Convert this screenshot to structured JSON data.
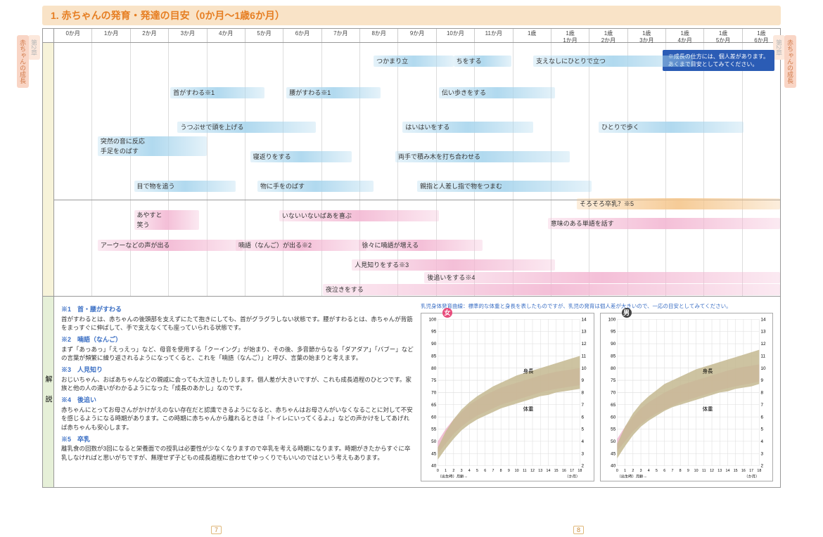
{
  "title": "1. 赤ちゃんの発育・発達の目安（0か月～1歳6か月）",
  "side_tabs": {
    "l": "赤ちゃんの成長",
    "l2": "第2章",
    "r": "赤ちゃんの成長",
    "r2": "第2章"
  },
  "axis": [
    "0か月",
    "1か月",
    "2か月",
    "3か月",
    "4か月",
    "5か月",
    "6か月",
    "7か月",
    "8か月",
    "9か月",
    "10か月",
    "11か月",
    "1歳",
    "1歳\n1か月",
    "1歳\n2か月",
    "1歳\n3か月",
    "1歳\n4か月",
    "1歳\n5か月",
    "1歳\n6か月"
  ],
  "note": "※成長の仕方には、個人差があります。\nあくまで目安としてみてください。",
  "bars": [
    {
      "t": "つかまり立",
      "c": "blue",
      "x": 44,
      "w": 11,
      "y": 5
    },
    {
      "t": "ちをする",
      "c": "blue",
      "x": 55,
      "w": 8,
      "y": 5
    },
    {
      "t": "支えなしにひとりで立つ",
      "c": "blue",
      "x": 66,
      "w": 22,
      "y": 5
    },
    {
      "t": "首がすわる※1",
      "c": "blue",
      "x": 16,
      "w": 13,
      "y": 18
    },
    {
      "t": "腰がすわる※1",
      "c": "blue",
      "x": 32,
      "w": 13,
      "y": 18
    },
    {
      "t": "伝い歩きをする",
      "c": "blue",
      "x": 53,
      "w": 16,
      "y": 18
    },
    {
      "t": "うつぶせで頭を上げる",
      "c": "blue",
      "x": 17,
      "w": 19,
      "y": 32
    },
    {
      "t": "はいはいをする",
      "c": "blue",
      "x": 48,
      "w": 18,
      "y": 32
    },
    {
      "t": "ひとりで歩く",
      "c": "blue",
      "x": 75,
      "w": 20,
      "y": 32
    },
    {
      "t": "突然の音に反応\n手足をのばす",
      "c": "blue",
      "x": 6,
      "w": 15,
      "y": 38,
      "h": 28
    },
    {
      "t": "寝返りをする",
      "c": "blue",
      "x": 27,
      "w": 14,
      "y": 44
    },
    {
      "t": "両手で積み木を打ち合わせる",
      "c": "blue",
      "x": 47,
      "w": 24,
      "y": 44
    },
    {
      "t": "目で物を追う",
      "c": "blue",
      "x": 11,
      "w": 14,
      "y": 56
    },
    {
      "t": "物に手をのばす",
      "c": "blue",
      "x": 28,
      "w": 16,
      "y": 56
    },
    {
      "t": "親指と人差し指で物をつまむ",
      "c": "blue",
      "x": 50,
      "w": 24,
      "y": 56
    },
    {
      "t": "そろそろ卒乳？※5",
      "c": "orange",
      "x": 72,
      "w": 28,
      "y": 63
    },
    {
      "t": "あやすと\n笑う",
      "c": "pink",
      "x": 11,
      "w": 9,
      "y": 68,
      "h": 28
    },
    {
      "t": "いないいないばあを喜ぶ",
      "c": "pink",
      "x": 31,
      "w": 22,
      "y": 68
    },
    {
      "t": "意味のある単語を話す",
      "c": "pink",
      "x": 68,
      "w": 32,
      "y": 71
    },
    {
      "t": "アーウーなどの声が出る",
      "c": "pink",
      "x": 6,
      "w": 20,
      "y": 80
    },
    {
      "t": "喃語（なんご）が出る※2",
      "c": "pink",
      "x": 25,
      "w": 18,
      "y": 80
    },
    {
      "t": "徐々に喃語が増える",
      "c": "pink",
      "x": 42,
      "w": 17,
      "y": 80
    },
    {
      "t": "人見知りをする※3",
      "c": "pink",
      "x": 41,
      "w": 28,
      "y": 88
    },
    {
      "t": "後追いをする※4",
      "c": "pink",
      "x": 51,
      "w": 49,
      "y": 93
    },
    {
      "t": "夜泣きをする",
      "c": "pink",
      "x": 37,
      "w": 63,
      "y": 98
    }
  ],
  "explain_label": "解 説",
  "explain": [
    {
      "h": "※1　首・腰がすわる",
      "p": "首がすわるとは、赤ちゃんの後頭部を支えずにたて抱きにしても、首がグラグラしない状態です。腰がすわるとは、赤ちゃんが背筋をまっすぐに伸ばして、手で支えなくても座っていられる状態です。"
    },
    {
      "h": "※2　喃語（なんご）",
      "p": "まず「あっあっ」「えっえっ」など、母音を使用する「クーイング」が始まり、その後、多音節からなる「ダアダア」「バブー」などの言葉が頻繁に繰り返されるようになってくると、これを「喃語（なんご）」と呼び、言葉の始まりと考えます。"
    },
    {
      "h": "※3　人見知り",
      "p": "おじいちゃん、おばあちゃんなどの親戚に会っても大泣きしたりします。個人差が大きいですが、これも成長過程のひとつです。家族と他の人の違いがわかるようになった「成長のあかし」なのです。"
    },
    {
      "h": "※4　後追い",
      "p": "赤ちゃんにとってお母さんがかけがえのない存在だと認識できるようになると、赤ちゃんはお母さんがいなくなることに対して不安を感じるようになる時期があります。この時期に赤ちゃんから離れるときは「トイレにいってくるよ。」などの声かけをしてあげれば赤ちゃんも安心します。"
    },
    {
      "h": "※5　卒乳",
      "p": "離乳食の回数が3回になると栄養面での授乳は必要性が少なくなりますので卒乳を考える時期になります。時期がきたからすぐに卒乳しなければと思いがちですが、無理せず子どもの成長過程に合わせてゆっくりでもいいのではという考えもあります。"
    }
  ],
  "chart_head": "乳児身体発育曲線：標準的な体重と身長を表したものですが、乳児の発育は個人差が大きいので、一応の目安としてみてください。",
  "charts": [
    {
      "badge": "女",
      "badge_color": "#e84a7a",
      "height_label": "身長",
      "weight_label": "体重",
      "height_upper": [
        50,
        55,
        59,
        62,
        65,
        67,
        69,
        70.5,
        72,
        73,
        74,
        75,
        76,
        77,
        77.8,
        78.5,
        79,
        79.5,
        80
      ],
      "height_lower": [
        45,
        49,
        53,
        56,
        58.5,
        60.5,
        62,
        63.5,
        65,
        66,
        67,
        68,
        69,
        70,
        70.8,
        71.5,
        72,
        72.5,
        73
      ],
      "weight_upper": [
        3.5,
        4.8,
        5.8,
        6.6,
        7.2,
        7.7,
        8.1,
        8.5,
        8.8,
        9.1,
        9.4,
        9.6,
        9.8,
        10,
        10.2,
        10.4,
        10.6,
        10.8,
        11
      ],
      "weight_lower": [
        2.5,
        3.4,
        4.2,
        4.9,
        5.4,
        5.8,
        6.1,
        6.4,
        6.7,
        6.9,
        7.1,
        7.3,
        7.5,
        7.7,
        7.8,
        8,
        8.1,
        8.2,
        8.3
      ]
    },
    {
      "badge": "男",
      "badge_color": "#444",
      "height_label": "身長",
      "weight_label": "体重",
      "height_upper": [
        51,
        56,
        60,
        63.5,
        66,
        68,
        70,
        71.5,
        73,
        74,
        75,
        76,
        77,
        78,
        79,
        79.8,
        80.5,
        81,
        81.5
      ],
      "height_lower": [
        46,
        50,
        54,
        57,
        59.5,
        61.5,
        63,
        64.5,
        66,
        67,
        68,
        69,
        70,
        71,
        71.8,
        72.5,
        73.2,
        73.8,
        74.5
      ],
      "weight_upper": [
        3.8,
        5.2,
        6.3,
        7.1,
        7.7,
        8.2,
        8.7,
        9,
        9.3,
        9.6,
        9.9,
        10.1,
        10.3,
        10.5,
        10.7,
        10.9,
        11.1,
        11.3,
        11.5
      ],
      "weight_lower": [
        2.6,
        3.6,
        4.5,
        5.2,
        5.7,
        6.1,
        6.5,
        6.8,
        7,
        7.2,
        7.4,
        7.6,
        7.8,
        8,
        8.1,
        8.3,
        8.4,
        8.5,
        8.7
      ]
    }
  ],
  "chart_style": {
    "y_left": [
      40,
      45,
      50,
      55,
      60,
      65,
      70,
      75,
      80,
      85,
      90,
      95,
      100
    ],
    "y_right": [
      2,
      3,
      4,
      5,
      6,
      7,
      8,
      9,
      10,
      11,
      12,
      13,
      14
    ],
    "x": [
      0,
      1,
      2,
      3,
      4,
      5,
      6,
      7,
      8,
      9,
      10,
      11,
      12,
      13,
      14,
      15,
      16,
      17,
      18
    ],
    "h_color": "#eeb4cd",
    "w_color": "#c4b890",
    "xlabel": "（出生時）月齢→",
    "xunit": "（か月）",
    "yl": "↑身長",
    "yr": "↑体重"
  },
  "page_l": "7",
  "page_r": "8"
}
